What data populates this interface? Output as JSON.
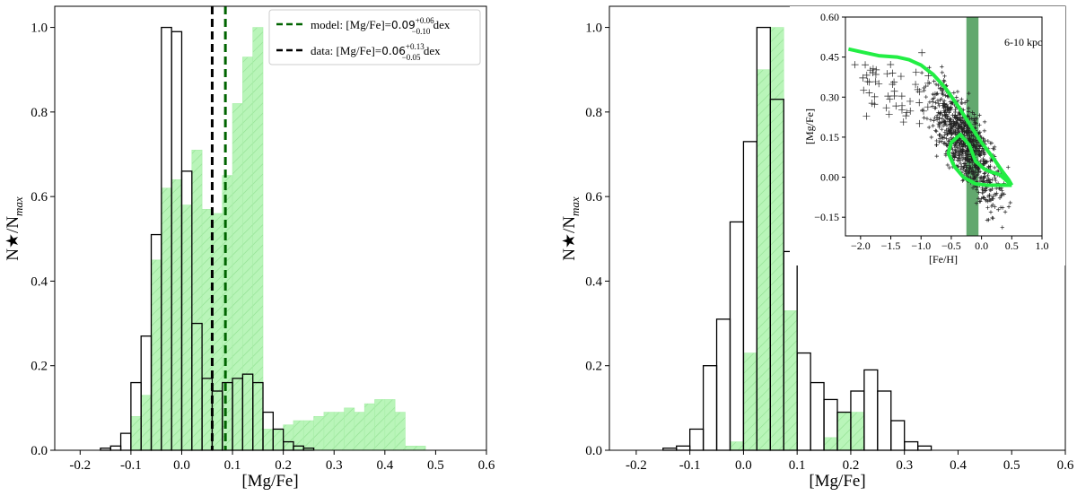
{
  "chart_data": [
    {
      "type": "bar",
      "panel": "left",
      "xlabel": "[Mg/Fe]",
      "ylabel": "N★/N",
      "ylabel_sub": "max",
      "xlim": [
        -0.25,
        0.6
      ],
      "ylim": [
        0.0,
        1.05
      ],
      "xticks": [
        "-0.2",
        "-0.1",
        "0.0",
        "0.1",
        "0.2",
        "0.3",
        "0.4",
        "0.5",
        "0.6"
      ],
      "xtick_values": [
        -0.2,
        -0.1,
        0.0,
        0.1,
        0.2,
        0.3,
        0.4,
        0.5,
        0.6
      ],
      "yticks": [
        "0.0",
        "0.2",
        "0.4",
        "0.6",
        "0.8",
        "1.0"
      ],
      "ytick_values": [
        0.0,
        0.2,
        0.4,
        0.6,
        0.8,
        1.0
      ],
      "bin_width": 0.02,
      "series": [
        {
          "name": "model",
          "style": "filled-hatched",
          "color": "#90ee90",
          "bins": [
            {
              "x": -0.1,
              "v": 0.08
            },
            {
              "x": -0.08,
              "v": 0.13
            },
            {
              "x": -0.06,
              "v": 0.45
            },
            {
              "x": -0.04,
              "v": 0.62
            },
            {
              "x": -0.02,
              "v": 0.64
            },
            {
              "x": 0.0,
              "v": 0.58
            },
            {
              "x": 0.02,
              "v": 0.71
            },
            {
              "x": 0.04,
              "v": 0.57
            },
            {
              "x": 0.06,
              "v": 0.56
            },
            {
              "x": 0.08,
              "v": 0.65
            },
            {
              "x": 0.1,
              "v": 0.82
            },
            {
              "x": 0.12,
              "v": 0.93
            },
            {
              "x": 0.14,
              "v": 1.0
            },
            {
              "x": 0.16,
              "v": 0.05
            },
            {
              "x": 0.18,
              "v": 0.05
            },
            {
              "x": 0.2,
              "v": 0.06
            },
            {
              "x": 0.22,
              "v": 0.07
            },
            {
              "x": 0.24,
              "v": 0.07
            },
            {
              "x": 0.26,
              "v": 0.08
            },
            {
              "x": 0.28,
              "v": 0.09
            },
            {
              "x": 0.3,
              "v": 0.09
            },
            {
              "x": 0.32,
              "v": 0.1
            },
            {
              "x": 0.34,
              "v": 0.09
            },
            {
              "x": 0.36,
              "v": 0.11
            },
            {
              "x": 0.38,
              "v": 0.12
            },
            {
              "x": 0.4,
              "v": 0.12
            },
            {
              "x": 0.42,
              "v": 0.09
            },
            {
              "x": 0.44,
              "v": 0.01
            },
            {
              "x": 0.46,
              "v": 0.01
            }
          ]
        },
        {
          "name": "data",
          "style": "step-outline",
          "color": "#000000",
          "bins": [
            {
              "x": -0.18,
              "v": 0.0
            },
            {
              "x": -0.16,
              "v": 0.005
            },
            {
              "x": -0.14,
              "v": 0.01
            },
            {
              "x": -0.12,
              "v": 0.04
            },
            {
              "x": -0.1,
              "v": 0.16
            },
            {
              "x": -0.08,
              "v": 0.27
            },
            {
              "x": -0.06,
              "v": 0.51
            },
            {
              "x": -0.04,
              "v": 1.0
            },
            {
              "x": -0.02,
              "v": 0.99
            },
            {
              "x": 0.0,
              "v": 0.66
            },
            {
              "x": 0.02,
              "v": 0.3
            },
            {
              "x": 0.04,
              "v": 0.17
            },
            {
              "x": 0.06,
              "v": 0.14
            },
            {
              "x": 0.08,
              "v": 0.16
            },
            {
              "x": 0.1,
              "v": 0.17
            },
            {
              "x": 0.12,
              "v": 0.18
            },
            {
              "x": 0.14,
              "v": 0.16
            },
            {
              "x": 0.16,
              "v": 0.09
            },
            {
              "x": 0.18,
              "v": 0.05
            },
            {
              "x": 0.2,
              "v": 0.02
            },
            {
              "x": 0.22,
              "v": 0.01
            },
            {
              "x": 0.24,
              "v": 0.005
            },
            {
              "x": 0.26,
              "v": 0.0
            }
          ]
        }
      ],
      "vlines": [
        {
          "x": 0.06,
          "color": "#000000",
          "style": "dashed",
          "name": "data"
        },
        {
          "x": 0.086,
          "color": "#006400",
          "style": "dashed",
          "name": "model"
        }
      ],
      "legend": {
        "position": "top-right",
        "entries": [
          {
            "color": "#006400",
            "label": "model: [Mg/Fe]=",
            "value": "0.09",
            "sup": "+0.06",
            "sub": "−0.10",
            "unit": " dex"
          },
          {
            "color": "#000000",
            "label": "data: [Mg/Fe]=",
            "value": "0.06",
            "sup": "+0.13",
            "sub": "−0.05",
            "unit": " dex"
          }
        ]
      }
    },
    {
      "type": "bar",
      "panel": "right",
      "xlabel": "[Mg/Fe]",
      "ylabel": "N★/N",
      "ylabel_sub": "max",
      "xlim": [
        -0.25,
        0.6
      ],
      "ylim": [
        0.0,
        1.05
      ],
      "xticks": [
        "-0.2",
        "-0.1",
        "0.0",
        "0.1",
        "0.2",
        "0.3",
        "0.4",
        "0.5",
        "0.6"
      ],
      "xtick_values": [
        -0.2,
        -0.1,
        0.0,
        0.1,
        0.2,
        0.3,
        0.4,
        0.5,
        0.6
      ],
      "yticks": [
        "0.0",
        "0.2",
        "0.4",
        "0.6",
        "0.8",
        "1.0"
      ],
      "ytick_values": [
        0.0,
        0.2,
        0.4,
        0.6,
        0.8,
        1.0
      ],
      "bin_width": 0.025,
      "series": [
        {
          "name": "model",
          "style": "filled-hatched",
          "color": "#90ee90",
          "bins": [
            {
              "x": -0.025,
              "v": 0.02
            },
            {
              "x": 0.0,
              "v": 0.23
            },
            {
              "x": 0.025,
              "v": 0.9
            },
            {
              "x": 0.05,
              "v": 1.0
            },
            {
              "x": 0.075,
              "v": 0.33
            },
            {
              "x": 0.15,
              "v": 0.03
            },
            {
              "x": 0.175,
              "v": 0.09
            },
            {
              "x": 0.2,
              "v": 0.09
            }
          ]
        },
        {
          "name": "data",
          "style": "step-outline",
          "color": "#000000",
          "bins": [
            {
              "x": -0.175,
              "v": 0.0
            },
            {
              "x": -0.15,
              "v": 0.005
            },
            {
              "x": -0.125,
              "v": 0.01
            },
            {
              "x": -0.1,
              "v": 0.05
            },
            {
              "x": -0.075,
              "v": 0.2
            },
            {
              "x": -0.05,
              "v": 0.31
            },
            {
              "x": -0.025,
              "v": 0.54
            },
            {
              "x": 0.0,
              "v": 0.73
            },
            {
              "x": 0.025,
              "v": 1.0
            },
            {
              "x": 0.05,
              "v": 0.83
            },
            {
              "x": 0.075,
              "v": 0.47
            },
            {
              "x": 0.1,
              "v": 0.23
            },
            {
              "x": 0.125,
              "v": 0.16
            },
            {
              "x": 0.15,
              "v": 0.12
            },
            {
              "x": 0.175,
              "v": 0.09
            },
            {
              "x": 0.2,
              "v": 0.14
            },
            {
              "x": 0.225,
              "v": 0.19
            },
            {
              "x": 0.25,
              "v": 0.14
            },
            {
              "x": 0.275,
              "v": 0.07
            },
            {
              "x": 0.3,
              "v": 0.02
            },
            {
              "x": 0.325,
              "v": 0.01
            },
            {
              "x": 0.35,
              "v": 0.0
            }
          ]
        }
      ],
      "inset": {
        "type": "scatter",
        "xlabel": "[Fe/H]",
        "ylabel": "[Mg/Fe]",
        "xlim": [
          -2.25,
          1.0
        ],
        "ylim": [
          -0.22,
          0.6
        ],
        "xticks": [
          "−2.0",
          "−1.5",
          "−1.0",
          "−0.5",
          "0.0",
          "0.5",
          "1.0"
        ],
        "xtick_values": [
          -2.0,
          -1.5,
          -1.0,
          -0.5,
          0.0,
          0.5,
          1.0
        ],
        "yticks": [
          "0.60",
          "0.45",
          "0.30",
          "0.15",
          "0.00",
          "−0.15"
        ],
        "ytick_values": [
          0.6,
          0.45,
          0.3,
          0.15,
          0.0,
          -0.15
        ],
        "annotation": "6-10 kpc",
        "band": {
          "x0": -0.25,
          "x1": -0.05,
          "color": "#2e8b3e"
        },
        "track_color": "#22ee44",
        "outer_track": [
          [
            -2.2,
            0.48
          ],
          [
            -2.0,
            0.47
          ],
          [
            -1.7,
            0.455
          ],
          [
            -1.4,
            0.45
          ],
          [
            -1.2,
            0.44
          ],
          [
            -1.0,
            0.42
          ],
          [
            -0.8,
            0.385
          ],
          [
            -0.6,
            0.335
          ],
          [
            -0.4,
            0.27
          ],
          [
            -0.2,
            0.2
          ],
          [
            0.0,
            0.13
          ],
          [
            0.2,
            0.07
          ],
          [
            0.35,
            0.02
          ],
          [
            0.45,
            -0.01
          ],
          [
            0.5,
            -0.03
          ]
        ],
        "inner_loop": [
          [
            0.5,
            -0.03
          ],
          [
            0.3,
            -0.03
          ],
          [
            0.1,
            -0.03
          ],
          [
            -0.1,
            -0.025
          ],
          [
            -0.3,
            0.0
          ],
          [
            -0.45,
            0.04
          ],
          [
            -0.55,
            0.09
          ],
          [
            -0.5,
            0.13
          ],
          [
            -0.35,
            0.16
          ],
          [
            -0.2,
            0.12
          ],
          [
            -0.1,
            0.06
          ],
          [
            0.05,
            0.03
          ],
          [
            0.15,
            0.02
          ],
          [
            0.3,
            0.01
          ],
          [
            0.5,
            -0.03
          ]
        ]
      }
    }
  ]
}
